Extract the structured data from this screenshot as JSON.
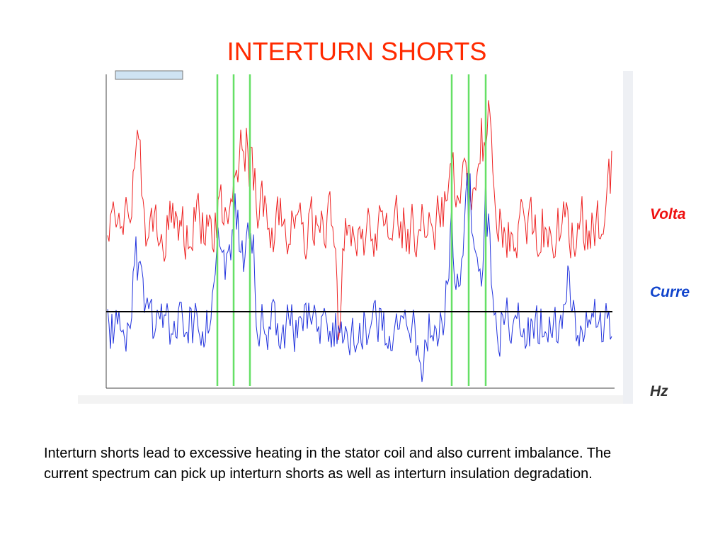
{
  "title": "INTERTURN SHORTS",
  "figure": {
    "labels": [
      "Volta",
      "Curre",
      "Hz"
    ]
  },
  "body": {
    "text": "Interturn shorts lead to excessive heating in the stator coil and also current imbalance. The current spectrum can pick up interturn shorts as well as interturn insulation degradation."
  }
}
